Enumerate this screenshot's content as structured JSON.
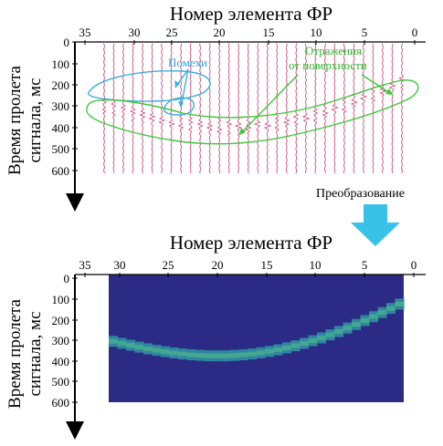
{
  "top_panel": {
    "x_title": "Номер элемента ФР",
    "y_title_line1": "Время пролета",
    "y_title_line2": "сигнала, мс",
    "x_ticks": [
      "35",
      "30",
      "25",
      "20",
      "15",
      "10",
      "5",
      "0"
    ],
    "y_ticks": [
      "0",
      "100",
      "200",
      "300",
      "400",
      "500",
      "600"
    ],
    "annotation_noise": "Помехи",
    "annotation_reflection_line1": "Отражения",
    "annotation_reflection_line2": "от поверхности"
  },
  "transform_label": "Преобразование",
  "bottom_panel": {
    "x_title": "Номер элемента ФР",
    "y_title_line1": "Время пролета",
    "y_title_line2": "сигнала, мс",
    "x_ticks": [
      "35",
      "30",
      "25",
      "20",
      "15",
      "10",
      "5",
      "0"
    ],
    "y_ticks": [
      "0",
      "100",
      "200",
      "300",
      "400",
      "500",
      "600"
    ]
  },
  "colors": {
    "trace": "#c8306a",
    "noise_outline": "#3aaee0",
    "reflection_outline": "#3cc83c",
    "arrow": "#39c2e8",
    "image_bg": "#2b2a85",
    "curve_inner": "#44a890",
    "curve_outer": "#2f86a0"
  }
}
